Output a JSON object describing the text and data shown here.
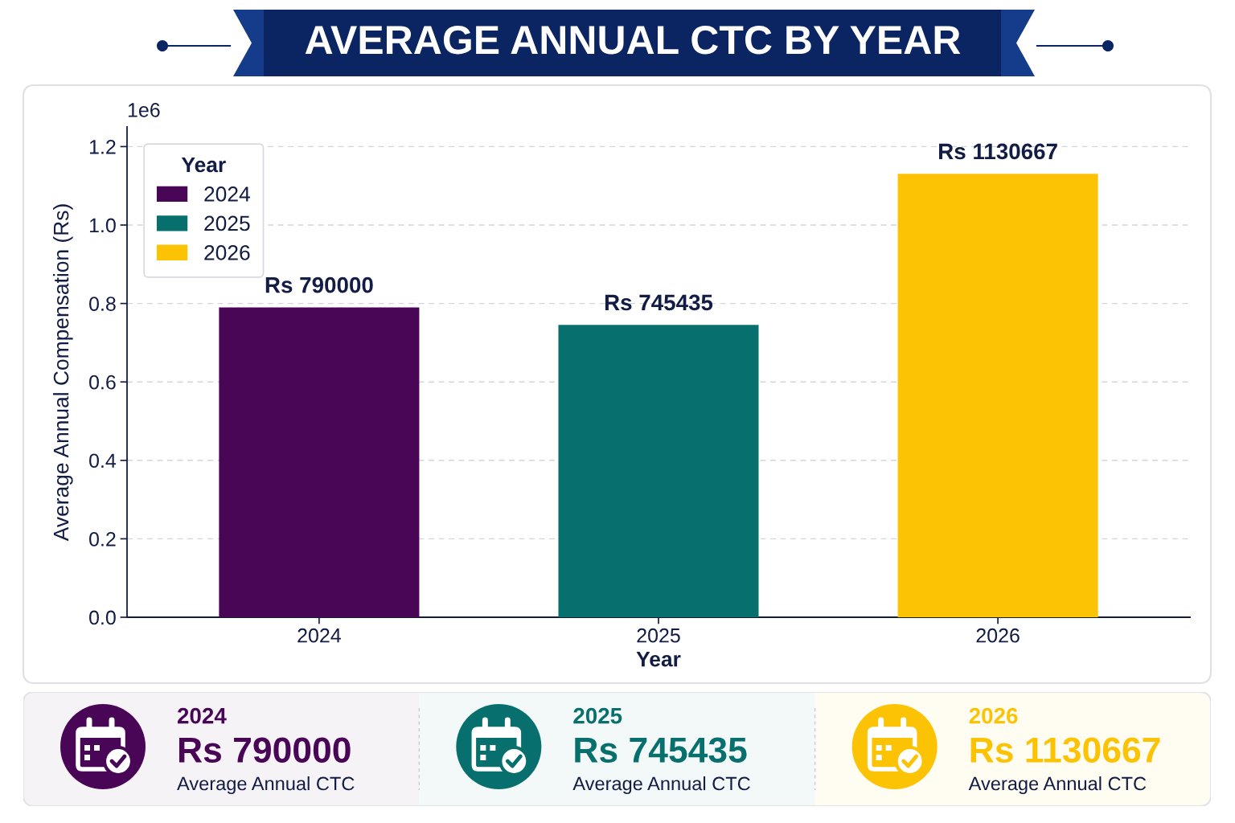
{
  "chart_data": [
    {
      "type": "bar",
      "title": "AVERAGE ANNUAL CTC BY YEAR",
      "xlabel": "Year",
      "ylabel": "Average Annual Compensation (Rs)",
      "legend_title": "Year",
      "categories": [
        "2024",
        "2025",
        "2026"
      ],
      "stacked": true,
      "series": [
        {
          "name": "2024",
          "color": "#4a0656",
          "values": [
            0.79,
            null,
            null
          ],
          "value_labels": [
            "Rs 790000",
            null,
            null
          ]
        },
        {
          "name": "2025",
          "color": "#07706e",
          "values": [
            null,
            0.745435,
            null
          ],
          "value_labels": [
            null,
            "Rs 745435",
            null
          ]
        },
        {
          "name": "2026",
          "color": "#fcc305",
          "values": [
            null,
            null,
            1.130667
          ],
          "value_labels": [
            null,
            null,
            "Rs 1130667"
          ]
        }
      ],
      "ylim": [
        0,
        1.25
      ],
      "yticks": [
        {
          "value": 0,
          "label": "0.0"
        },
        0.2,
        0.4,
        0.6,
        0.8,
        {
          "value": 1,
          "label": "1.0"
        },
        1.2
      ],
      "annotations": [
        "1e6"
      ],
      "grid": "y",
      "legend": "top left"
    },
    {
      "type": "other",
      "colors": [
        "#4a0656",
        "#07706e",
        "#fcc305"
      ],
      "annotations": [
        "2024",
        "Rs 790000",
        "Average Annual CTC",
        "2025",
        "Rs 745435",
        "Average Annual CTC",
        "2026",
        "Rs 1130667",
        "Average Annual CTC"
      ]
    }
  ]
}
